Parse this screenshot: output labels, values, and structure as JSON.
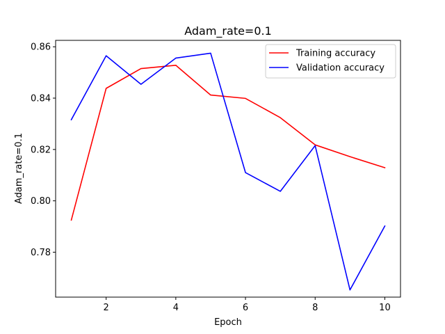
{
  "chart_data": {
    "type": "line",
    "title": "Adam_rate=0.1",
    "xlabel": "Epoch",
    "ylabel": "Adam_rate=0.1",
    "x": [
      1,
      2,
      3,
      4,
      5,
      6,
      7,
      8,
      9,
      10
    ],
    "xlim": [
      0.55,
      10.45
    ],
    "ylim": [
      0.7625,
      0.8625
    ],
    "xticks": [
      2,
      4,
      6,
      8,
      10
    ],
    "yticks": [
      0.78,
      0.8,
      0.82,
      0.84,
      0.86
    ],
    "xtick_labels": [
      "2",
      "4",
      "6",
      "8",
      "10"
    ],
    "ytick_labels": [
      "0.78",
      "0.80",
      "0.82",
      "0.84",
      "0.86"
    ],
    "grid": false,
    "legend_position": "top-right",
    "series": [
      {
        "name": "Training accuracy",
        "color": "#ff0000",
        "values": [
          0.7925,
          0.8438,
          0.8515,
          0.8528,
          0.8412,
          0.8399,
          0.8324,
          0.8218,
          0.8172,
          0.8129
        ]
      },
      {
        "name": "Validation accuracy",
        "color": "#0000ff",
        "values": [
          0.8316,
          0.8565,
          0.8454,
          0.8556,
          0.8575,
          0.811,
          0.8037,
          0.8215,
          0.7653,
          0.7902
        ]
      }
    ]
  }
}
